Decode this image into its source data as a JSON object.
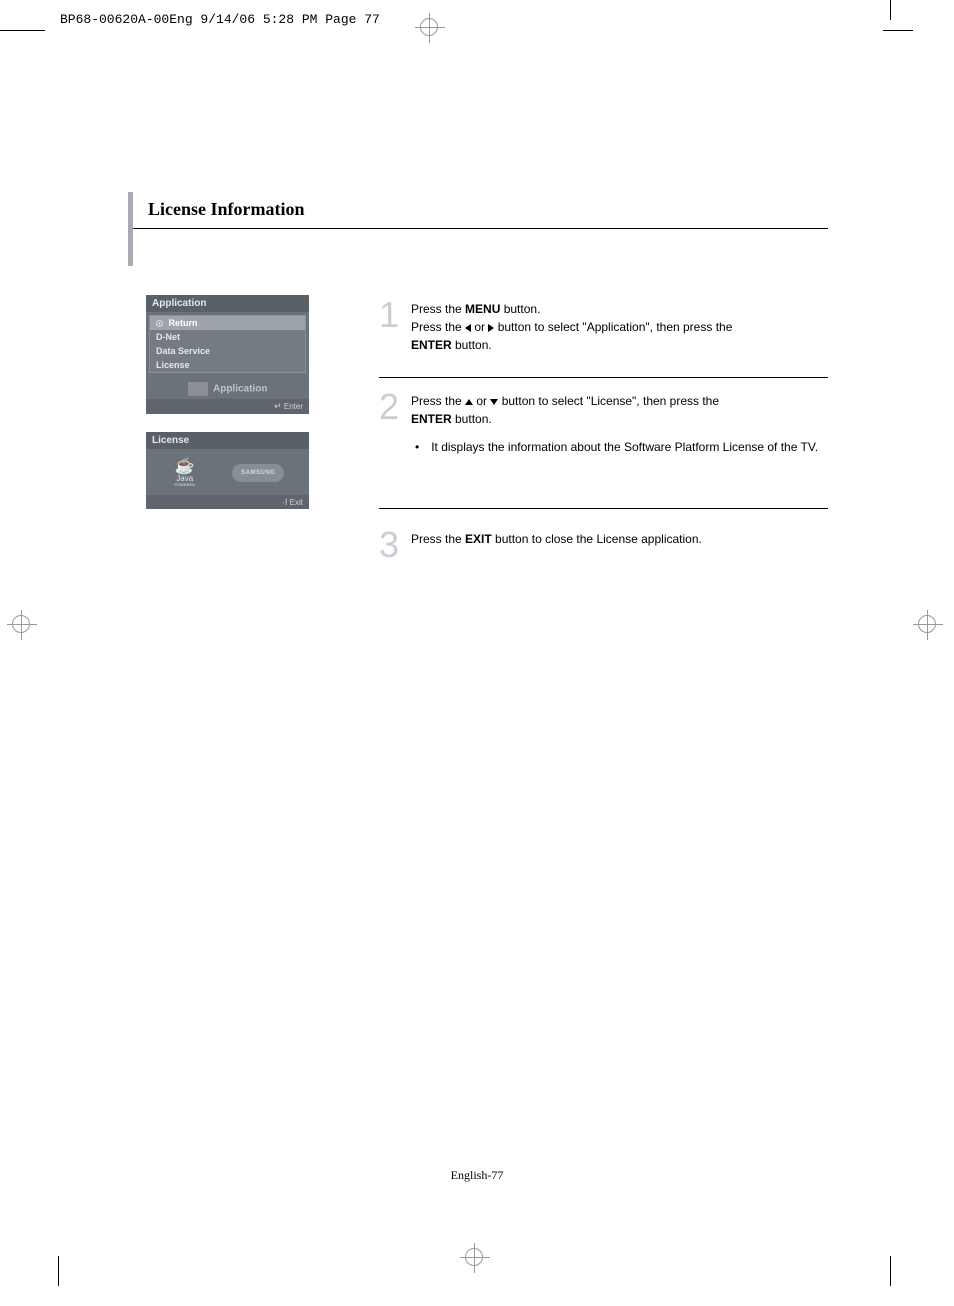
{
  "header_text": "BP68-00620A-00Eng  9/14/06  5:28 PM  Page 77",
  "heading": "License Information",
  "screenshots": {
    "application": {
      "title": "Application",
      "return": "Return",
      "items": [
        "D-Net",
        "Data Service",
        "License"
      ],
      "sub_label": "Application",
      "footer_icon": "↵",
      "footer": "Enter"
    },
    "license": {
      "title": "License",
      "java_label": "Java",
      "java_sublabel": "POWERED",
      "samsung": "SAMSUNG",
      "footer_icon": "·I",
      "footer": "Exit"
    }
  },
  "steps": {
    "s1": {
      "num": "1",
      "line1a": "Press the ",
      "line1b": "MENU",
      "line1c": " button.",
      "line2a": "Press the ",
      "line2b": " or ",
      "line2c": " button to select \"Application\", then press the ",
      "line3a": "ENTER",
      "line3b": " button."
    },
    "s2": {
      "num": "2",
      "line1a": "Press the ",
      "line1b": " or ",
      "line1c": " button to select \"License\", then press the ",
      "line2a": "ENTER",
      "line2b": " button.",
      "bullet": "It displays the information about the Software Platform License of the TV."
    },
    "s3": {
      "num": "3",
      "line1a": "Press the ",
      "line1b": "EXIT",
      "line1c": " button to close the License application."
    }
  },
  "page_number": "English-77",
  "colors": {
    "accent_bar": "#a7acb2",
    "step_num": "#c9ced4",
    "panel_bg": "#6c727a",
    "panel_header": "#5a6068",
    "menu_bg": "#757b83",
    "menu_selected": "#9fa4ab"
  }
}
